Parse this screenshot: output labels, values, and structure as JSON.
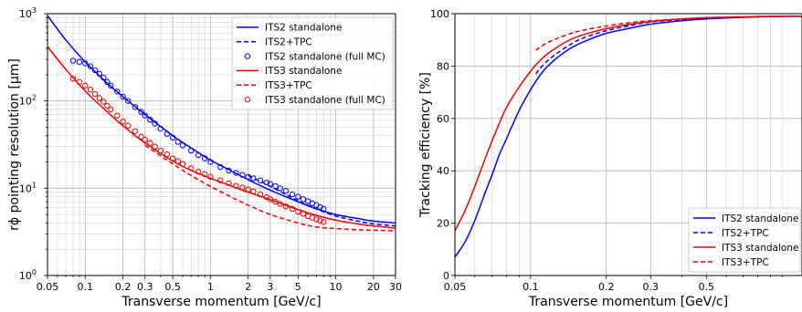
{
  "colors": {
    "its2": "#0000ee",
    "its3": "#ee0000"
  },
  "chart_data": [
    {
      "type": "line",
      "xscale": "log",
      "yscale": "log",
      "xlim": [
        0.05,
        30
      ],
      "ylim": [
        1,
        1000
      ],
      "xlabel": "Transverse momentum [GeV/c]",
      "ylabel": "rϕ pointing resolution [μm]",
      "xticks": [
        {
          "v": 0.05,
          "label": "0.05"
        },
        {
          "v": 0.1,
          "label": "0.1"
        },
        {
          "v": 0.2,
          "label": "0.2"
        },
        {
          "v": 0.3,
          "label": "0.3"
        },
        {
          "v": 0.5,
          "label": "0.5"
        },
        {
          "v": 1,
          "label": "1"
        },
        {
          "v": 2,
          "label": "2"
        },
        {
          "v": 3,
          "label": "3"
        },
        {
          "v": 5,
          "label": "5"
        },
        {
          "v": 10,
          "label": "10"
        },
        {
          "v": 20,
          "label": "20"
        },
        {
          "v": 30,
          "label": "30"
        }
      ],
      "yticks": [
        {
          "v": 1,
          "label": "10",
          "exp": "0"
        },
        {
          "v": 10,
          "label": "10",
          "exp": "1"
        },
        {
          "v": 100,
          "label": "10",
          "exp": "2"
        },
        {
          "v": 1000,
          "label": "10",
          "exp": "3"
        }
      ],
      "grid": true,
      "legend_position": "top-right",
      "series": [
        {
          "name": "ITS2 standalone",
          "color": "#0000ee",
          "style": "solid",
          "x": [
            0.05,
            0.07,
            0.1,
            0.15,
            0.2,
            0.3,
            0.5,
            0.7,
            1,
            1.5,
            2,
            3,
            5,
            7,
            10,
            15,
            20,
            30
          ],
          "y": [
            950,
            500,
            280,
            160,
            112,
            70,
            40,
            29,
            21,
            15.5,
            12.5,
            9.5,
            7,
            5.8,
            5,
            4.5,
            4.2,
            4
          ]
        },
        {
          "name": "ITS2+TPC",
          "color": "#0000ee",
          "style": "dashed",
          "x": [
            2,
            3,
            5,
            7,
            10,
            15,
            20,
            30
          ],
          "y": [
            14,
            10.5,
            7.2,
            5.8,
            4.8,
            4.2,
            3.9,
            3.7
          ]
        },
        {
          "name": "ITS2 standalone (full MC)",
          "color": "#0000ee",
          "style": "markers",
          "x": [
            0.08,
            0.09,
            0.1,
            0.11,
            0.12,
            0.13,
            0.14,
            0.15,
            0.16,
            0.18,
            0.2,
            0.22,
            0.25,
            0.28,
            0.3,
            0.33,
            0.36,
            0.4,
            0.45,
            0.5,
            0.55,
            0.6,
            0.7,
            0.8,
            0.9,
            1,
            1.2,
            1.4,
            1.6,
            1.8,
            2,
            2.2,
            2.5,
            2.8,
            3,
            3.3,
            3.6,
            4,
            4.5,
            5,
            5.5,
            6,
            6.5,
            7,
            7.5,
            8
          ],
          "y": [
            290,
            280,
            270,
            250,
            225,
            205,
            185,
            165,
            150,
            128,
            112,
            100,
            85,
            75,
            68,
            61,
            55,
            48,
            42,
            38,
            34,
            31,
            27,
            24,
            22,
            20,
            17.5,
            16,
            15,
            14.2,
            13.5,
            13,
            12.3,
            11.6,
            11.2,
            10.6,
            10,
            9.3,
            8.5,
            8,
            7.5,
            7.1,
            6.7,
            6.4,
            6.1,
            5.8
          ]
        },
        {
          "name": "ITS3 standalone",
          "color": "#ee0000",
          "style": "solid",
          "x": [
            0.05,
            0.07,
            0.1,
            0.15,
            0.2,
            0.3,
            0.5,
            0.7,
            1,
            1.5,
            2,
            3,
            5,
            7,
            10,
            15,
            20,
            30
          ],
          "y": [
            420,
            230,
            130,
            75,
            52,
            33,
            20.5,
            16,
            13,
            10.5,
            9,
            7.4,
            5.7,
            4.9,
            4.3,
            3.9,
            3.7,
            3.5
          ]
        },
        {
          "name": "ITS3+TPC",
          "color": "#ee0000",
          "style": "dashed",
          "x": [
            0.3,
            0.5,
            0.7,
            1,
            1.5,
            2,
            3,
            5,
            7,
            10,
            15,
            20,
            30
          ],
          "y": [
            31,
            19,
            14,
            10.5,
            7.8,
            6.4,
            5,
            4,
            3.6,
            3.45,
            3.35,
            3.3,
            3.25
          ]
        },
        {
          "name": "ITS3 standalone (full MC)",
          "color": "#ee0000",
          "style": "markers",
          "x": [
            0.08,
            0.09,
            0.1,
            0.11,
            0.12,
            0.13,
            0.14,
            0.15,
            0.16,
            0.18,
            0.2,
            0.22,
            0.25,
            0.28,
            0.3,
            0.33,
            0.36,
            0.4,
            0.45,
            0.5,
            0.55,
            0.6,
            0.7,
            0.8,
            0.9,
            1,
            1.2,
            1.4,
            1.6,
            1.8,
            2,
            2.2,
            2.5,
            2.8,
            3,
            3.3,
            3.6,
            4,
            4.5,
            5,
            5.5,
            6,
            6.5,
            7,
            7.5,
            8
          ],
          "y": [
            180,
            165,
            150,
            135,
            120,
            108,
            98,
            88,
            80,
            68,
            58,
            52,
            45,
            39,
            36,
            33,
            30,
            27,
            24.5,
            22,
            20.5,
            19,
            17,
            15.5,
            14.5,
            13.5,
            12.3,
            11.4,
            10.7,
            10.2,
            9.7,
            9.2,
            8.5,
            7.9,
            7.5,
            7,
            6.6,
            6.2,
            5.8,
            5.4,
            5.1,
            4.8,
            4.6,
            4.4,
            4.25,
            4.1
          ]
        }
      ]
    },
    {
      "type": "line",
      "xscale": "log",
      "yscale": "linear",
      "xlim": [
        0.05,
        1.2
      ],
      "ylim": [
        0,
        100
      ],
      "xlabel": "Transverse momentum [GeV/c]",
      "ylabel": "Tracking efficiency [%]",
      "xticks": [
        {
          "v": 0.05,
          "label": "0.05"
        },
        {
          "v": 0.1,
          "label": "0.1"
        },
        {
          "v": 0.2,
          "label": "0.2"
        },
        {
          "v": 0.3,
          "label": "0.3"
        },
        {
          "v": 0.5,
          "label": "0.5"
        }
      ],
      "yticks": [
        {
          "v": 0,
          "label": "0"
        },
        {
          "v": 20,
          "label": "20"
        },
        {
          "v": 40,
          "label": "40"
        },
        {
          "v": 60,
          "label": "60"
        },
        {
          "v": 80,
          "label": "80"
        },
        {
          "v": 100,
          "label": "100"
        }
      ],
      "grid": true,
      "legend_position": "bottom-right",
      "series": [
        {
          "name": "ITS2 standalone",
          "color": "#0000ee",
          "style": "solid",
          "x": [
            0.05,
            0.055,
            0.06,
            0.065,
            0.07,
            0.075,
            0.08,
            0.09,
            0.1,
            0.11,
            0.12,
            0.14,
            0.16,
            0.2,
            0.25,
            0.3,
            0.4,
            0.5,
            0.7,
            1,
            1.2
          ],
          "y": [
            7,
            13,
            21,
            30,
            38,
            46,
            52,
            63,
            71,
            77,
            81,
            86,
            89,
            92.5,
            94.5,
            96,
            97.3,
            98,
            98.6,
            99,
            99
          ]
        },
        {
          "name": "ITS2+TPC",
          "color": "#0000ee",
          "style": "dashed",
          "x": [
            0.105,
            0.11,
            0.12,
            0.14,
            0.16,
            0.2,
            0.25,
            0.3,
            0.4,
            0.5,
            0.7,
            1,
            1.2
          ],
          "y": [
            77,
            79.5,
            83,
            87.5,
            90.5,
            93.5,
            95.5,
            96.8,
            97.8,
            98.3,
            98.7,
            99,
            99
          ]
        },
        {
          "name": "ITS3 standalone",
          "color": "#ee0000",
          "style": "solid",
          "x": [
            0.05,
            0.055,
            0.06,
            0.065,
            0.07,
            0.075,
            0.08,
            0.09,
            0.1,
            0.11,
            0.12,
            0.14,
            0.16,
            0.2,
            0.25,
            0.3,
            0.4,
            0.5,
            0.7,
            1,
            1.2
          ],
          "y": [
            17,
            25,
            34,
            43,
            51,
            58,
            64,
            72,
            78,
            82.5,
            85.5,
            89.5,
            91.8,
            94.3,
            96,
            97,
            98,
            98.5,
            98.8,
            99,
            99
          ]
        },
        {
          "name": "ITS3+TPC",
          "color": "#ee0000",
          "style": "dashed",
          "x": [
            0.105,
            0.11,
            0.12,
            0.14,
            0.16,
            0.2,
            0.25,
            0.3,
            0.4,
            0.5,
            0.7,
            1,
            1.2
          ],
          "y": [
            86,
            87.5,
            89.5,
            92,
            93.6,
            95.3,
            96.6,
            97.3,
            98,
            98.4,
            98.8,
            99,
            99
          ]
        }
      ]
    }
  ]
}
